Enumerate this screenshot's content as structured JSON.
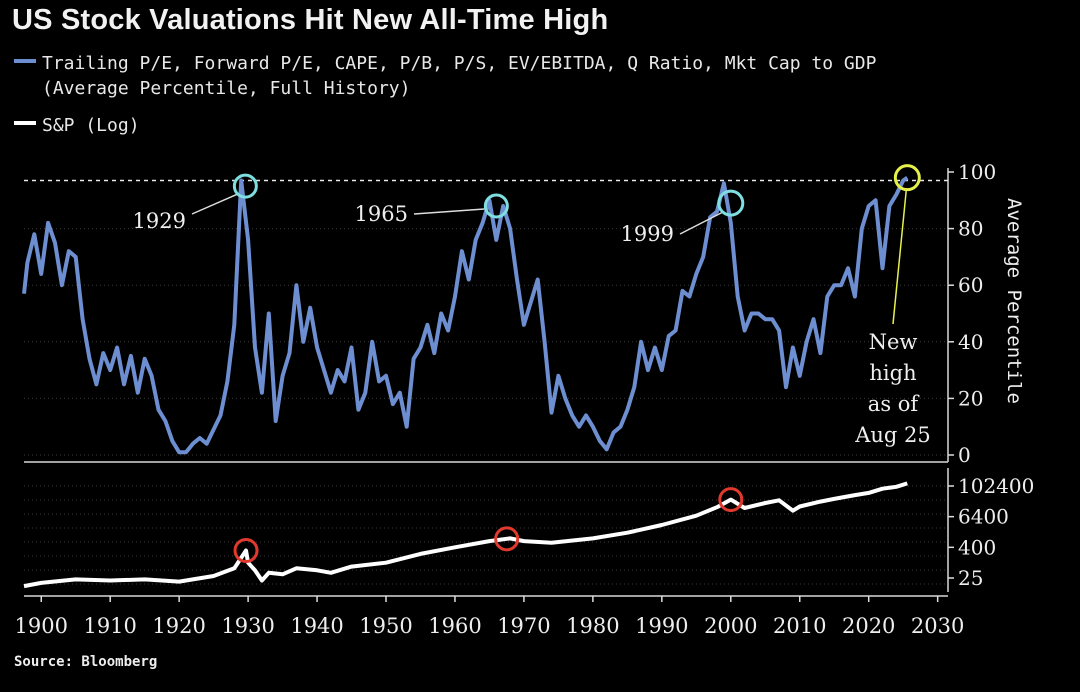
{
  "title": "US Stock Valuations Hit New All-Time High",
  "legend": {
    "valuation_line1": "Trailing P/E, Forward P/E, CAPE, P/B, P/S, EV/EBITDA, Q Ratio, Mkt Cap to GDP",
    "valuation_line2": "(Average Percentile, Full History)",
    "sp_label": "S&P (Log)"
  },
  "source": "Source: Bloomberg",
  "colors": {
    "valuation": "#6d8fd1",
    "sp": "#ffffff",
    "cyan": "#7fdfe0",
    "yellow": "#e6f04a",
    "red": "#e03a2e"
  },
  "chart_data": [
    {
      "type": "line",
      "title": "US Stock Valuations Hit New All-Time High",
      "ylabel": "Average Percentile",
      "ylim": [
        0,
        100
      ],
      "yticks": [
        "100",
        "80",
        "60",
        "40",
        "20",
        "0"
      ],
      "reference_line": 97,
      "series": [
        {
          "name": "Trailing P/E, Forward P/E, CAPE, P/B, P/S, EV/EBITDA, Q Ratio, Mkt Cap to GDP (Average Percentile, Full History)",
          "x": [
            1897.5,
            1898,
            1899,
            1900,
            1901,
            1902,
            1903,
            1904,
            1905,
            1906,
            1907,
            1908,
            1909,
            1910,
            1911,
            1912,
            1913,
            1914,
            1915,
            1916,
            1917,
            1918,
            1919,
            1920,
            1921,
            1922,
            1923,
            1924,
            1925,
            1926,
            1927,
            1928,
            1929,
            1930,
            1931,
            1932,
            1933,
            1934,
            1935,
            1936,
            1937,
            1938,
            1939,
            1940,
            1941,
            1942,
            1943,
            1944,
            1945,
            1946,
            1947,
            1948,
            1949,
            1950,
            1951,
            1952,
            1953,
            1954,
            1955,
            1956,
            1957,
            1958,
            1959,
            1960,
            1961,
            1962,
            1963,
            1964,
            1965,
            1966,
            1967,
            1968,
            1969,
            1970,
            1971,
            1972,
            1973,
            1974,
            1975,
            1976,
            1977,
            1978,
            1979,
            1980,
            1981,
            1982,
            1983,
            1984,
            1985,
            1986,
            1987,
            1988,
            1989,
            1990,
            1991,
            1992,
            1993,
            1994,
            1995,
            1996,
            1997,
            1998,
            1999,
            2000,
            2001,
            2002,
            2003,
            2004,
            2005,
            2006,
            2007,
            2008,
            2009,
            2010,
            2011,
            2012,
            2013,
            2014,
            2015,
            2016,
            2017,
            2018,
            2019,
            2020,
            2021,
            2022,
            2023,
            2024,
            2025,
            2025.6
          ],
          "values": [
            57,
            68,
            78,
            64,
            82,
            75,
            60,
            72,
            70,
            48,
            34,
            25,
            36,
            30,
            38,
            25,
            35,
            22,
            34,
            28,
            16,
            12,
            5,
            1,
            1,
            4,
            6,
            4,
            9,
            14,
            26,
            46,
            97,
            76,
            38,
            22,
            50,
            12,
            28,
            36,
            60,
            40,
            52,
            38,
            30,
            22,
            30,
            26,
            38,
            16,
            22,
            40,
            26,
            28,
            18,
            22,
            10,
            34,
            38,
            46,
            36,
            50,
            44,
            56,
            72,
            62,
            76,
            82,
            90,
            76,
            88,
            80,
            62,
            46,
            54,
            62,
            40,
            15,
            28,
            20,
            14,
            10,
            14,
            10,
            5,
            2,
            8,
            10,
            16,
            24,
            40,
            30,
            38,
            30,
            42,
            44,
            58,
            56,
            64,
            70,
            84,
            86,
            96,
            82,
            56,
            44,
            50,
            50,
            48,
            48,
            44,
            24,
            38,
            28,
            40,
            48,
            36,
            56,
            60,
            60,
            66,
            56,
            80,
            88,
            90,
            66,
            88,
            92,
            97,
            98
          ]
        }
      ]
    },
    {
      "type": "line",
      "title": "S&P (Log)",
      "ylabel": "",
      "ylim": [
        3,
        300000
      ],
      "yticks": [
        "102400",
        "6400",
        "400",
        "25"
      ],
      "series": [
        {
          "name": "S&P (Log)",
          "x": [
            1897.5,
            1900,
            1905,
            1910,
            1915,
            1920,
            1925,
            1928,
            1929.7,
            1930,
            1931,
            1932,
            1933,
            1935,
            1937,
            1940,
            1942,
            1945,
            1950,
            1955,
            1960,
            1965,
            1968,
            1970,
            1974,
            1980,
            1985,
            1990,
            1995,
            1998,
            2000,
            2002,
            2005,
            2007,
            2009,
            2010,
            2013,
            2015,
            2018,
            2020,
            2022,
            2024,
            2025.6
          ],
          "values": [
            12,
            16,
            22,
            20,
            22,
            18,
            30,
            60,
            300,
            100,
            50,
            20,
            40,
            35,
            60,
            50,
            40,
            70,
            100,
            220,
            400,
            700,
            900,
            700,
            600,
            900,
            1500,
            3000,
            7000,
            15000,
            30000,
            14000,
            22000,
            28000,
            11000,
            16000,
            25000,
            32000,
            45000,
            55000,
            80000,
            95000,
            130000
          ]
        }
      ]
    },
    {
      "type": "axis",
      "xlim": [
        1897.5,
        2031.5
      ],
      "xticks": [
        "1900",
        "1910",
        "1920",
        "1930",
        "1940",
        "1950",
        "1960",
        "1970",
        "1980",
        "1990",
        "2000",
        "2010",
        "2020",
        "2030"
      ]
    }
  ],
  "annotations": {
    "a1929": {
      "label": "1929",
      "year": 1929.6,
      "value": 95
    },
    "a1965": {
      "label": "1965",
      "year": 1966,
      "value": 88
    },
    "a1999": {
      "label": "1999",
      "year": 2000,
      "value": 89
    },
    "new_high": {
      "lines": [
        "New",
        "high",
        "as of",
        "Aug 25"
      ],
      "year": 2025.6,
      "value": 98
    },
    "sp_markers": [
      {
        "year": 1929.7
      },
      {
        "year": 1967.5
      },
      {
        "year": 2000
      }
    ]
  }
}
